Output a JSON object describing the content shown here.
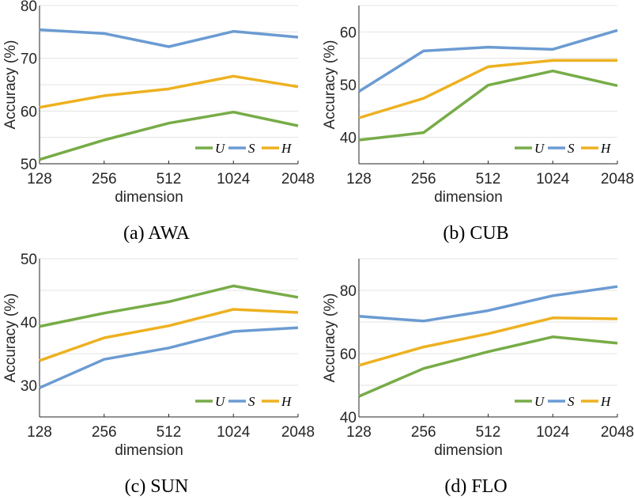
{
  "colors": {
    "U": "#77ac48",
    "S": "#6b9bd2",
    "H": "#edb120"
  },
  "chart_data": [
    {
      "type": "line",
      "caption": "(a) AWA",
      "xlabel": "dimension",
      "ylabel": "Accuracy (%)",
      "categories": [
        "128",
        "256",
        "512",
        "1024",
        "2048"
      ],
      "ylim": [
        50,
        80
      ],
      "yticks": [
        50,
        60,
        70,
        80
      ],
      "grid_step": 5,
      "grid": true,
      "legend": "bottom-right",
      "series": [
        {
          "name": "U",
          "values": [
            50.8,
            54.5,
            57.7,
            59.8,
            57.2
          ]
        },
        {
          "name": "S",
          "values": [
            75.4,
            74.7,
            72.2,
            75.1,
            74.0
          ]
        },
        {
          "name": "H",
          "values": [
            60.7,
            62.9,
            64.2,
            66.6,
            64.6
          ]
        }
      ]
    },
    {
      "type": "line",
      "caption": "(b) CUB",
      "xlabel": "dimension",
      "ylabel": "Accuracy (%)",
      "categories": [
        "128",
        "256",
        "512",
        "1024",
        "2048"
      ],
      "ylim": [
        35,
        65
      ],
      "yticks": [
        40,
        50,
        60
      ],
      "grid_step": 5,
      "grid": true,
      "legend": "bottom-right",
      "series": [
        {
          "name": "U",
          "values": [
            39.5,
            40.9,
            49.9,
            52.6,
            49.8
          ]
        },
        {
          "name": "S",
          "values": [
            48.7,
            56.4,
            57.1,
            56.7,
            60.3
          ]
        },
        {
          "name": "H",
          "values": [
            43.7,
            47.4,
            53.4,
            54.6,
            54.6
          ]
        }
      ]
    },
    {
      "type": "line",
      "caption": "(c) SUN",
      "xlabel": "dimension",
      "ylabel": "Accuracy (%)",
      "categories": [
        "128",
        "256",
        "512",
        "1024",
        "2048"
      ],
      "ylim": [
        25,
        50
      ],
      "yticks": [
        30,
        40,
        50
      ],
      "grid_step": 5,
      "grid": true,
      "legend": "bottom-right",
      "series": [
        {
          "name": "U",
          "values": [
            39.3,
            41.4,
            43.2,
            45.7,
            43.9
          ]
        },
        {
          "name": "S",
          "values": [
            29.6,
            34.1,
            35.9,
            38.5,
            39.1
          ]
        },
        {
          "name": "H",
          "values": [
            33.9,
            37.5,
            39.4,
            42.0,
            41.5
          ]
        }
      ]
    },
    {
      "type": "line",
      "caption": "(d) FLO",
      "xlabel": "dimension",
      "ylabel": "Accuracy (%)",
      "categories": [
        "128",
        "256",
        "512",
        "1024",
        "2048"
      ],
      "ylim": [
        40,
        90
      ],
      "yticks": [
        40,
        60,
        80
      ],
      "grid_step": 10,
      "grid": true,
      "legend": "bottom-right",
      "series": [
        {
          "name": "U",
          "values": [
            46.5,
            55.3,
            60.6,
            65.3,
            63.3
          ]
        },
        {
          "name": "S",
          "values": [
            71.8,
            70.3,
            73.6,
            78.3,
            81.2
          ]
        },
        {
          "name": "H",
          "values": [
            56.3,
            62.1,
            66.3,
            71.3,
            71.0
          ]
        }
      ]
    }
  ]
}
